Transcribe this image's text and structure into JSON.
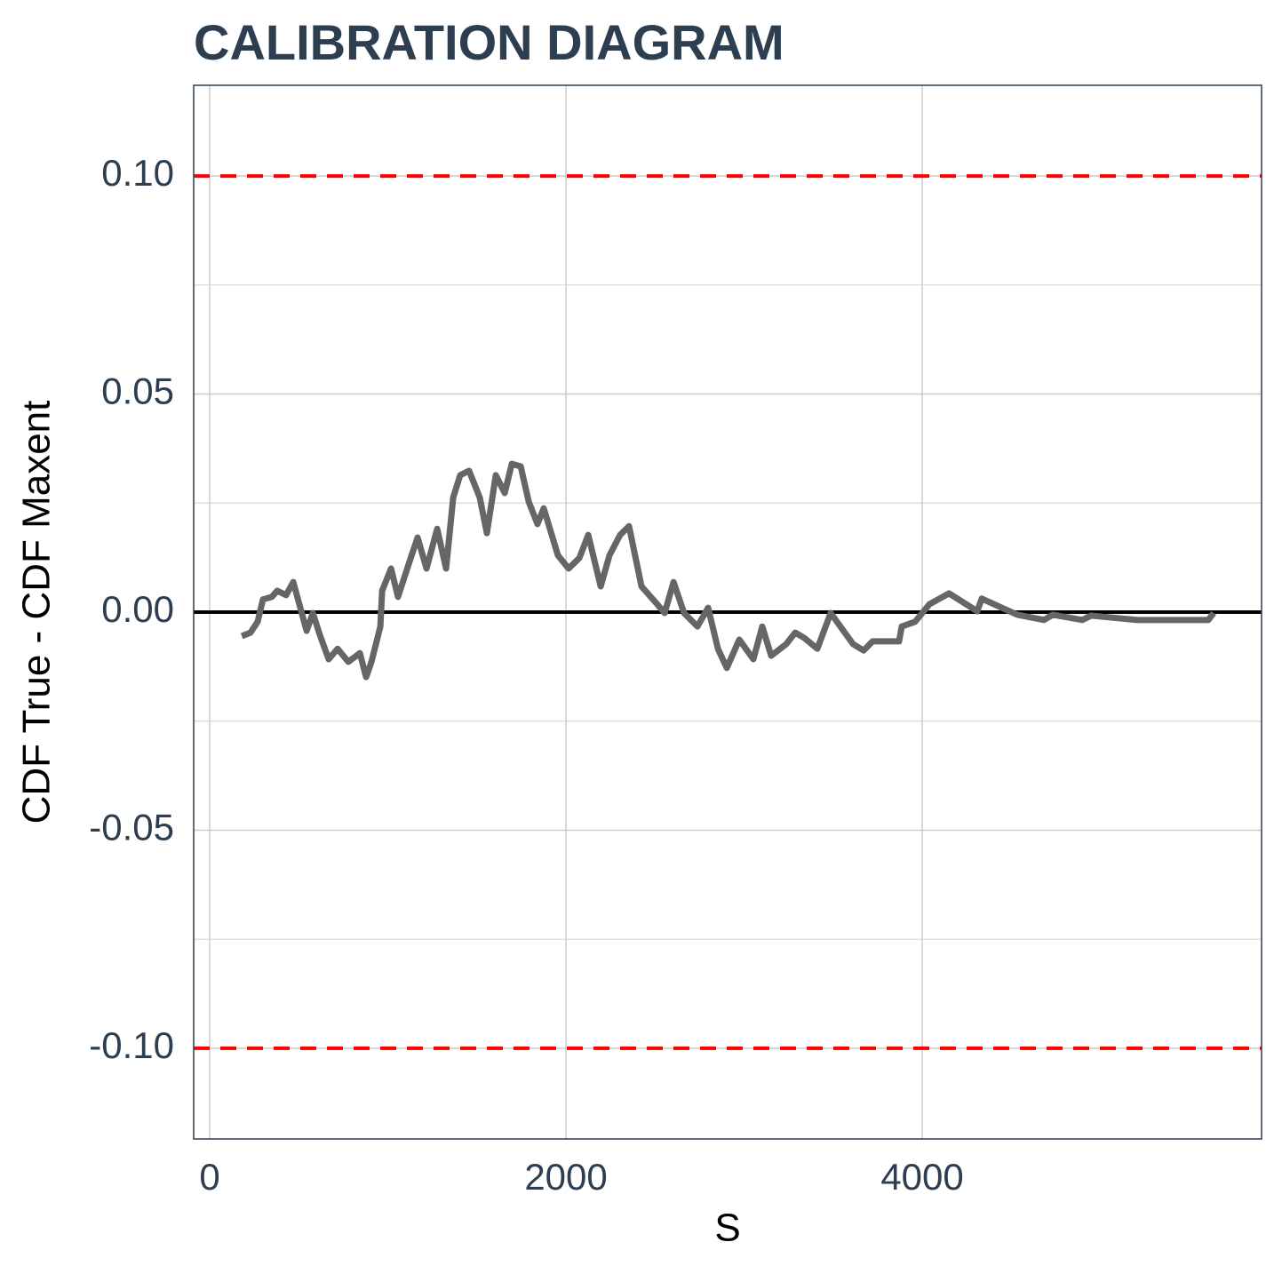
{
  "chart_data": {
    "type": "line",
    "title": "CALIBRATION DIAGRAM",
    "x_label": "S",
    "y_label": "CDF True - CDF Maxent",
    "xlim": [
      -90,
      5905
    ],
    "ylim": [
      -0.1208,
      0.1208
    ],
    "xticks": [
      0,
      2000,
      4000
    ],
    "yticks": [
      {
        "value": -0.1,
        "label": "-0.10"
      },
      -0.05,
      {
        "value": 0,
        "label": "0.00"
      },
      0.05,
      {
        "value": 0.1,
        "label": "0.10"
      }
    ],
    "grid": true,
    "color": "#666666",
    "hlines": [
      {
        "value": 0.1,
        "color": "#ff0000",
        "style": "dashed"
      },
      {
        "value": -0.1,
        "color": "#ff0000",
        "style": "dashed"
      },
      {
        "value": 0,
        "color": "#000000",
        "style": "solid"
      }
    ],
    "x": [
      180,
      229,
      269,
      299,
      349,
      379,
      429,
      469,
      544,
      579,
      619,
      668,
      718,
      778,
      843,
      878,
      908,
      958,
      968,
      1018,
      1057,
      1117,
      1167,
      1217,
      1277,
      1327,
      1367,
      1406,
      1456,
      1516,
      1556,
      1606,
      1656,
      1696,
      1746,
      1791,
      1840,
      1875,
      1955,
      2015,
      2075,
      2125,
      2195,
      2244,
      2304,
      2354,
      2424,
      2504,
      2554,
      2604,
      2663,
      2738,
      2798,
      2853,
      2903,
      2973,
      3052,
      3102,
      3152,
      3237,
      3287,
      3337,
      3411,
      3486,
      3611,
      3671,
      3721,
      3870,
      3885,
      3960,
      4040,
      4150,
      4309,
      4334,
      4534,
      4683,
      4733,
      4898,
      4948,
      5207,
      5606,
      5636
    ],
    "values": [
      -0.0055,
      -0.0047,
      -0.0022,
      0.0029,
      0.0035,
      0.0049,
      0.0039,
      0.0069,
      -0.0043,
      -0.0002,
      -0.0053,
      -0.0108,
      -0.0084,
      -0.0114,
      -0.0094,
      -0.0149,
      -0.0114,
      -0.0033,
      0.0049,
      0.01,
      0.0035,
      0.011,
      0.0171,
      0.01,
      0.0191,
      0.01,
      0.0263,
      0.0314,
      0.0324,
      0.0263,
      0.0181,
      0.0314,
      0.0273,
      0.034,
      0.0334,
      0.0253,
      0.0202,
      0.0238,
      0.013,
      0.01,
      0.0124,
      0.0177,
      0.0059,
      0.013,
      0.0177,
      0.0197,
      0.0059,
      0.0022,
      -0.0002,
      0.0069,
      -0.0002,
      -0.0033,
      0.001,
      -0.0084,
      -0.0128,
      -0.0063,
      -0.0108,
      -0.0033,
      -0.01,
      -0.0073,
      -0.0047,
      -0.0059,
      -0.0084,
      -0.0002,
      -0.0073,
      -0.0088,
      -0.0067,
      -0.0067,
      -0.0033,
      -0.0022,
      0.0018,
      0.0043,
      0.0002,
      0.0031,
      -0.0006,
      -0.0018,
      -0.0006,
      -0.0018,
      -0.0008,
      -0.0018,
      -0.0018,
      -0.0002
    ]
  }
}
